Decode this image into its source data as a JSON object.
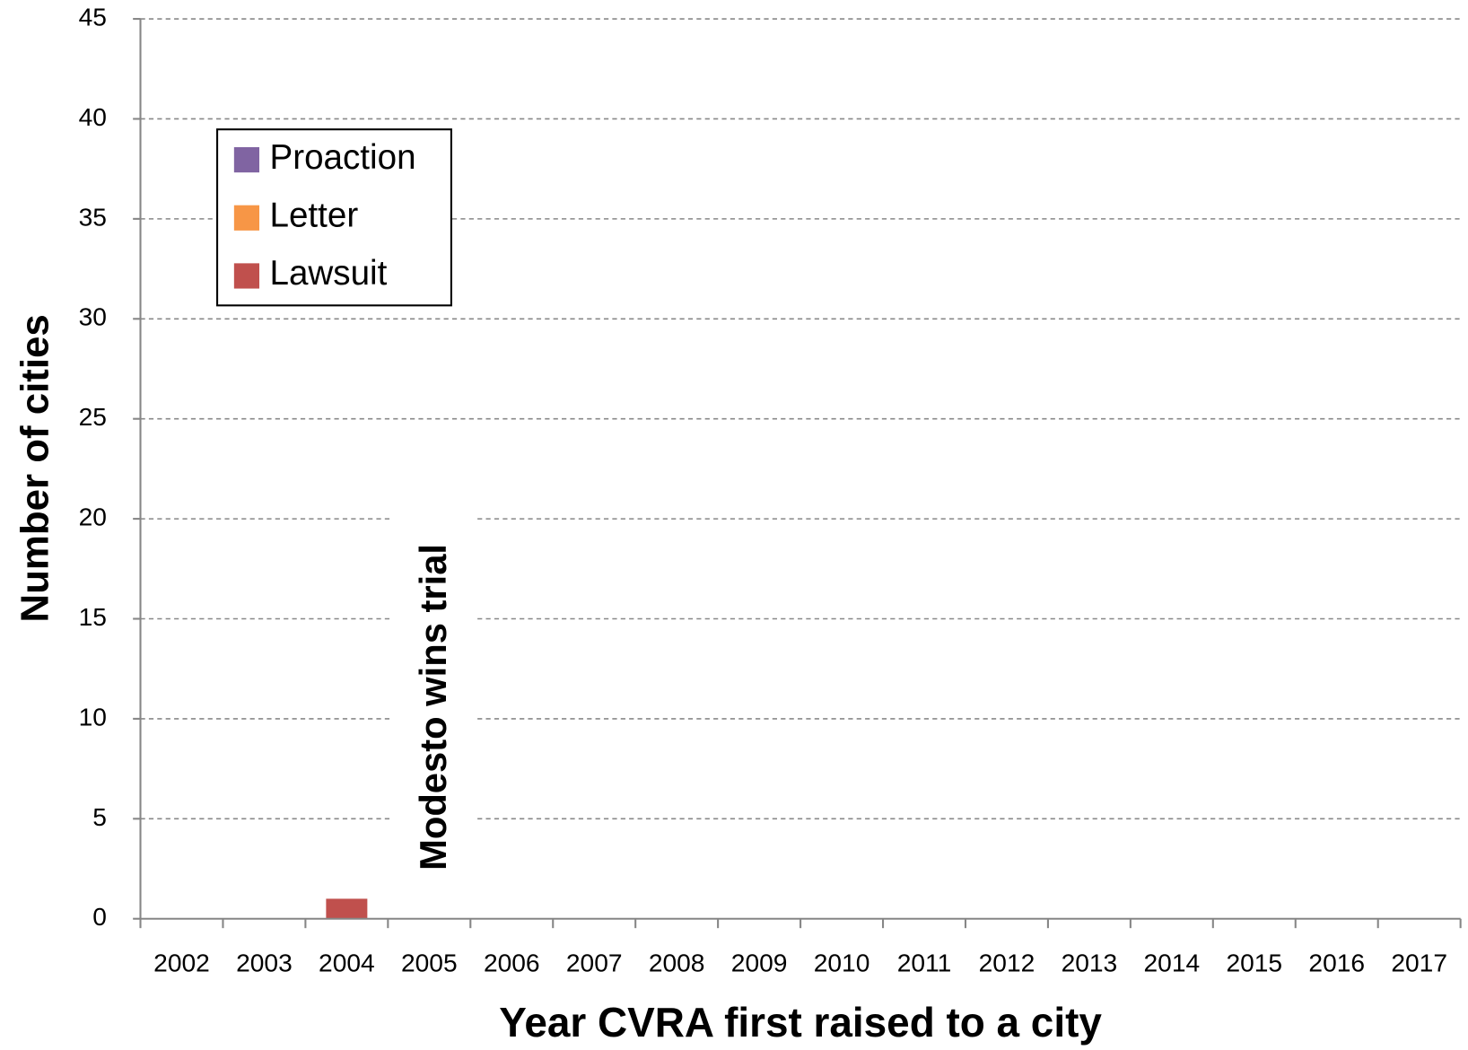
{
  "chart_data": {
    "type": "stacked-bar",
    "x_label": "Year CVRA first raised to a city",
    "y_label": "Number of cities",
    "annotation": "Modesto wins trial",
    "categories": [
      "2002",
      "2003",
      "2004",
      "2005",
      "2006",
      "2007",
      "2008",
      "2009",
      "2010",
      "2011",
      "2012",
      "2013",
      "2014",
      "2015",
      "2016",
      "2017"
    ],
    "series": [
      {
        "name": "Lawsuit",
        "color": "#c0504d",
        "values": [
          0,
          0,
          1,
          0,
          0,
          0,
          0,
          0,
          0,
          0,
          0,
          0,
          0,
          0,
          0,
          0
        ]
      },
      {
        "name": "Letter",
        "color": "#f79646",
        "values": [
          0,
          0,
          0,
          0,
          0,
          0,
          0,
          0,
          0,
          0,
          0,
          0,
          0,
          0,
          0,
          0
        ]
      },
      {
        "name": "Proaction",
        "color": "#8064a2",
        "values": [
          0,
          0,
          0,
          0,
          0,
          0,
          0,
          0,
          0,
          0,
          0,
          0,
          0,
          0,
          0,
          0
        ]
      }
    ],
    "ylim": [
      0,
      45
    ],
    "yticks": [
      0,
      5,
      10,
      15,
      20,
      25,
      30,
      35,
      40,
      45
    ],
    "grid": true
  }
}
